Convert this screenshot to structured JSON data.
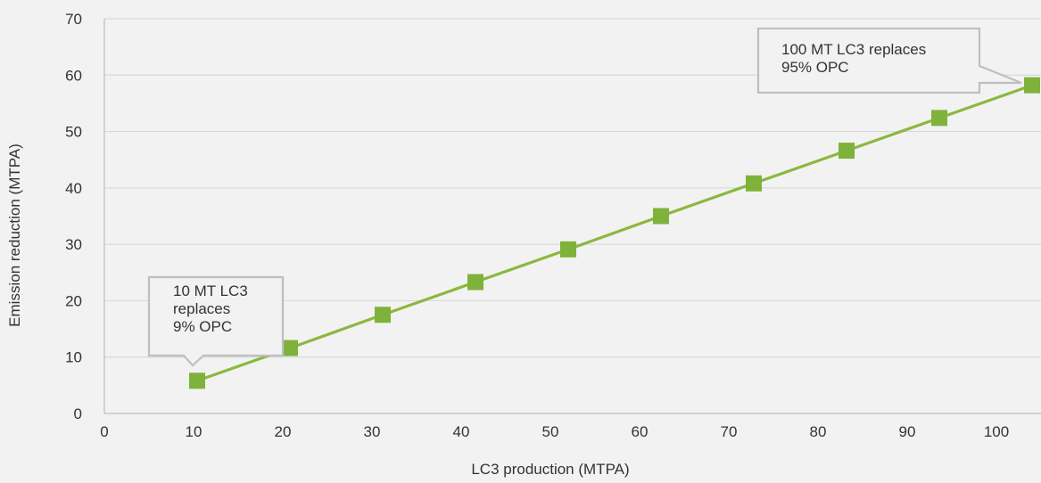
{
  "chart_data": {
    "type": "line",
    "xlabel": "LC3 production (MTPA)",
    "ylabel": "Emission reduction (MTPA)",
    "xlim": [
      0,
      105
    ],
    "ylim": [
      0,
      70
    ],
    "xticks": [
      "0",
      "10",
      "20",
      "30",
      "40",
      "50",
      "60",
      "70",
      "80",
      "90",
      "100"
    ],
    "yticks": [
      "0",
      "10",
      "20",
      "30",
      "40",
      "50",
      "60",
      "70"
    ],
    "grid": "horizontal",
    "series": [
      {
        "marker": "square",
        "x": [
          10.4,
          20.8,
          31.2,
          41.6,
          52.0,
          62.4,
          72.8,
          83.2,
          93.6,
          104.0
        ],
        "y": [
          5.8,
          11.6,
          17.5,
          23.3,
          29.1,
          35.0,
          40.8,
          46.6,
          52.4,
          58.2
        ]
      }
    ],
    "annotations": [
      {
        "lines": [
          "10 MT LC3",
          "replaces",
          "9% OPC"
        ]
      },
      {
        "lines": [
          "100 MT LC3 replaces",
          "95% OPC"
        ]
      }
    ],
    "colors": {
      "line": "#8bb83f",
      "marker": "#7fb23a",
      "grid": "#d9d9d9",
      "axis": "#bfbfbf",
      "callout_border": "#bfbfbf"
    }
  }
}
